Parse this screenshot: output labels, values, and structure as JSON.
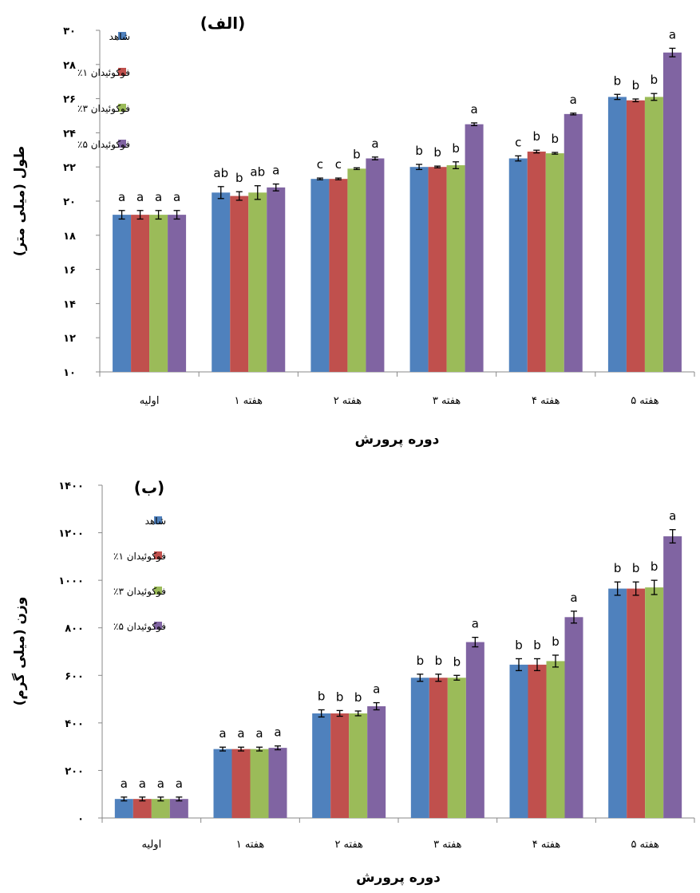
{
  "colors": {
    "control": "#4F81BD",
    "fuc1": "#C0504D",
    "fuc3": "#9BBB59",
    "fuc5": "#8064A2"
  },
  "chart_data": [
    {
      "type": "bar",
      "panel_label": "(الف)",
      "xlabel": "دوره پرورش",
      "ylabel": "طول (میلی متر)",
      "categories": [
        "اولیه",
        "هفته ۱",
        "هفته ۲",
        "هفته ۳",
        "هفته ۴",
        "هفته ۵"
      ],
      "ylim": [
        10,
        30
      ],
      "yticks": [
        10,
        12,
        14,
        16,
        18,
        20,
        22,
        24,
        26,
        28,
        30
      ],
      "ytick_labels": [
        "۱۰",
        "۱۲",
        "۱۴",
        "۱۶",
        "۱۸",
        "۲۰",
        "۲۲",
        "۲۴",
        "۲۶",
        "۲۸",
        "۳۰"
      ],
      "legend_position": "top-left",
      "series": [
        {
          "name": "شاهد",
          "values": [
            19.2,
            20.5,
            21.3,
            22.0,
            22.5,
            26.1
          ],
          "errors": [
            0.25,
            0.35,
            0.05,
            0.15,
            0.15,
            0.15
          ],
          "labels": [
            "a",
            "ab",
            "c",
            "b",
            "c",
            "b"
          ]
        },
        {
          "name": "فوکوئیدان ۱٪",
          "values": [
            19.2,
            20.3,
            21.3,
            22.0,
            22.9,
            25.9
          ],
          "errors": [
            0.25,
            0.25,
            0.05,
            0.05,
            0.08,
            0.08
          ],
          "labels": [
            "a",
            "b",
            "c",
            "b",
            "b",
            "b"
          ]
        },
        {
          "name": "فوکوئیدان ۳٪",
          "values": [
            19.2,
            20.5,
            21.9,
            22.1,
            22.8,
            26.1
          ],
          "errors": [
            0.25,
            0.4,
            0.05,
            0.2,
            0.05,
            0.2
          ],
          "labels": [
            "a",
            "ab",
            "b",
            "b",
            "b",
            "b"
          ]
        },
        {
          "name": "فوکوئیدان ۵٪",
          "values": [
            19.2,
            20.8,
            22.5,
            24.5,
            25.1,
            28.7
          ],
          "errors": [
            0.25,
            0.2,
            0.08,
            0.08,
            0.05,
            0.25
          ],
          "labels": [
            "a",
            "a",
            "a",
            "a",
            "a",
            "a"
          ]
        }
      ]
    },
    {
      "type": "bar",
      "panel_label": "(ب)",
      "xlabel": "دوره پرورش",
      "ylabel": "وزن (میلی گرم)",
      "categories": [
        "اولیه",
        "هفته ۱",
        "هفته ۲",
        "هفته ۳",
        "هفته ۴",
        "هفته ۵"
      ],
      "ylim": [
        0,
        1400
      ],
      "yticks": [
        0,
        200,
        400,
        600,
        800,
        1000,
        1200,
        1400
      ],
      "ytick_labels": [
        "۰",
        "۲۰۰",
        "۴۰۰",
        "۶۰۰",
        "۸۰۰",
        "۱۰۰۰",
        "۱۲۰۰",
        "۱۴۰۰"
      ],
      "legend_position": "top-left",
      "series": [
        {
          "name": "شاهد",
          "values": [
            80,
            290,
            440,
            590,
            645,
            965
          ],
          "errors": [
            8,
            8,
            15,
            15,
            25,
            28
          ],
          "labels": [
            "a",
            "a",
            "b",
            "b",
            "b",
            "b"
          ]
        },
        {
          "name": "فوکوئیدان ۱٪",
          "values": [
            80,
            290,
            440,
            590,
            645,
            965
          ],
          "errors": [
            8,
            8,
            12,
            15,
            25,
            28
          ],
          "labels": [
            "a",
            "a",
            "b",
            "b",
            "b",
            "b"
          ]
        },
        {
          "name": "فوکوئیدان ۳٪",
          "values": [
            80,
            290,
            440,
            590,
            660,
            970
          ],
          "errors": [
            8,
            8,
            10,
            10,
            25,
            30
          ],
          "labels": [
            "a",
            "a",
            "b",
            "b",
            "b",
            "b"
          ]
        },
        {
          "name": "فوکوئیدان ۵٪",
          "values": [
            80,
            295,
            470,
            740,
            845,
            1185
          ],
          "errors": [
            8,
            8,
            15,
            20,
            25,
            28
          ],
          "labels": [
            "a",
            "a",
            "a",
            "a",
            "a",
            "a"
          ]
        }
      ]
    }
  ]
}
